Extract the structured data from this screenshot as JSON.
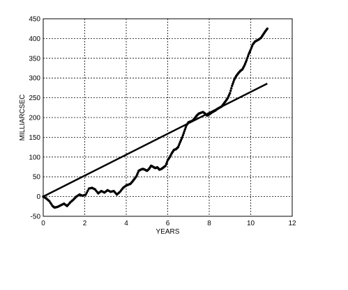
{
  "chart_data": {
    "type": "line",
    "title": "",
    "xlabel": "YEARS",
    "ylabel": "MILLIARCSEC",
    "xlim": [
      0,
      12
    ],
    "ylim": [
      -50,
      450
    ],
    "xticks": [
      0,
      2,
      4,
      6,
      8,
      10,
      12
    ],
    "yticks": [
      -50,
      0,
      50,
      100,
      150,
      200,
      250,
      300,
      350,
      400,
      450
    ],
    "grid": true,
    "legend": "none",
    "series": [
      {
        "style": "line",
        "color": "#000000",
        "x": [
          0,
          10.8
        ],
        "y": [
          0,
          286
        ]
      },
      {
        "style": "dots",
        "color": "#000000",
        "x": [
          0,
          0.15,
          0.3,
          0.45,
          0.55,
          0.7,
          0.85,
          1.0,
          1.15,
          1.3,
          1.45,
          1.6,
          1.75,
          1.9,
          2.05,
          2.2,
          2.35,
          2.5,
          2.65,
          2.8,
          2.95,
          3.1,
          3.25,
          3.4,
          3.55,
          3.7,
          3.85,
          4.0,
          4.1,
          4.2,
          4.3,
          4.4,
          4.5,
          4.6,
          4.7,
          4.8,
          4.9,
          5.0,
          5.1,
          5.2,
          5.3,
          5.4,
          5.5,
          5.6,
          5.7,
          5.8,
          5.9,
          6.0,
          6.1,
          6.2,
          6.3,
          6.4,
          6.5,
          6.6,
          6.7,
          6.8,
          6.9,
          7.0,
          7.1,
          7.2,
          7.3,
          7.4,
          7.5,
          7.6,
          7.7,
          7.8,
          7.9,
          8.0,
          8.1,
          8.2,
          8.3,
          8.4,
          8.5,
          8.6,
          8.7,
          8.8,
          8.9,
          9.0,
          9.1,
          9.2,
          9.3,
          9.4,
          9.5,
          9.6,
          9.7,
          9.8,
          9.9,
          10.0,
          10.1,
          10.2,
          10.3,
          10.4,
          10.5,
          10.6,
          10.7,
          10.8
        ],
        "y": [
          0,
          -5,
          -12,
          -24,
          -28,
          -26,
          -22,
          -18,
          -24,
          -15,
          -8,
          0,
          5,
          2,
          5,
          20,
          22,
          18,
          8,
          14,
          10,
          16,
          12,
          14,
          5,
          12,
          22,
          28,
          30,
          32,
          38,
          45,
          52,
          65,
          68,
          70,
          68,
          65,
          70,
          78,
          75,
          72,
          74,
          68,
          70,
          74,
          78,
          92,
          100,
          110,
          118,
          120,
          125,
          138,
          150,
          165,
          180,
          188,
          190,
          192,
          198,
          205,
          210,
          212,
          214,
          210,
          205,
          208,
          212,
          215,
          218,
          222,
          225,
          228,
          235,
          242,
          250,
          262,
          280,
          295,
          305,
          312,
          318,
          322,
          332,
          345,
          360,
          372,
          385,
          392,
          395,
          398,
          402,
          410,
          418,
          425
        ]
      }
    ]
  }
}
